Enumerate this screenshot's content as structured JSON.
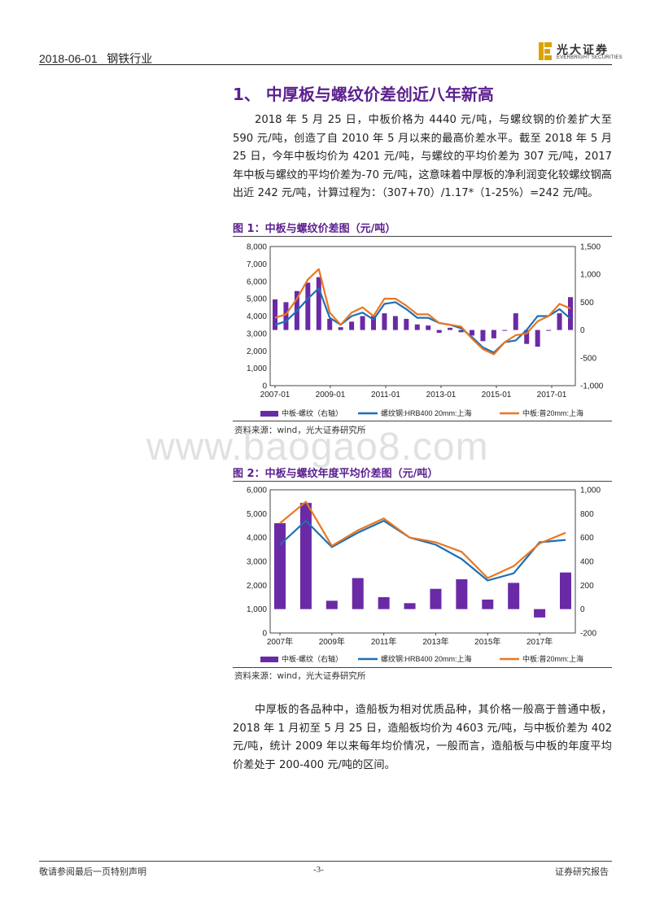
{
  "header": {
    "date": "2018-06-01",
    "industry": "钢铁行业",
    "logo_cn": "光大证券",
    "logo_en": "EVERBRIGHT SECURITIES"
  },
  "section": {
    "title": "1、 中厚板与螺纹价差创近八年新高",
    "paragraph1": "2018 年 5 月 25 日，中板价格为 4440 元/吨，与螺纹钢的价差扩大至 590 元/吨，创造了自 2010 年 5 月以来的最高价差水平。截至 2018 年 5 月 25 日，今年中板均价为 4201 元/吨，与螺纹的平均价差为 307 元/吨，2017 年中板与螺纹的平均价差为-70 元/吨，这意味着中厚板的净利润变化较螺纹钢高出近 242 元/吨，计算过程为：（307+70）/1.17*（1-25%）=242 元/吨。",
    "paragraph2": "中厚板的各品种中，造船板为相对优质品种，其价格一般高于普通中板，2018 年 1 月初至 5 月 25 日，造船板均价为 4603 元/吨，与中板价差为 402 元/吨，统计 2009 年以来每年均价情况，一般而言，造船板与中板的年度平均价差处于 200-400 元/吨的区间。"
  },
  "figure1": {
    "title": "图 1：中板与螺纹价差图（元/吨）",
    "source": "资料来源：wind，光大证券研究所"
  },
  "figure2": {
    "title": "图 2：中板与螺纹年度平均价差图（元/吨）",
    "source": "资料来源：wind，光大证券研究所"
  },
  "watermark": "www.baogao8.com",
  "footer": {
    "left": "敬请参阅最后一页特别声明",
    "center": "-3-",
    "right": "证券研究报告"
  },
  "colors": {
    "accent": "#5b1f8e",
    "spread": "#6a2aa5",
    "rebar": "#1f6fb4",
    "plate": "#e87722"
  },
  "chart_data": [
    {
      "type": "line",
      "title": "中板与螺纹价差图（元/吨）",
      "x": [
        "2007-01",
        "2007-07",
        "2008-01",
        "2008-04",
        "2008-07",
        "2008-10",
        "2009-01",
        "2009-07",
        "2010-01",
        "2010-07",
        "2011-01",
        "2011-07",
        "2012-01",
        "2012-07",
        "2013-01",
        "2013-07",
        "2014-01",
        "2014-07",
        "2015-01",
        "2015-07",
        "2015-12",
        "2016-04",
        "2016-07",
        "2017-01",
        "2017-04",
        "2017-07",
        "2018-01",
        "2018-05"
      ],
      "x_tick_labels": [
        "2007-01",
        "2009-01",
        "2011-01",
        "2013-01",
        "2015-01",
        "2017-01"
      ],
      "ylim_left": [
        0,
        8000
      ],
      "y_ticks_left": [
        "0",
        "1,000",
        "2,000",
        "3,000",
        "4,000",
        "5,000",
        "6,000",
        "7,000",
        "8,000"
      ],
      "ylim_right": [
        -1000,
        1500
      ],
      "y_ticks_right": [
        "-1,000",
        "-500",
        "0",
        "500",
        "1,000",
        "1,500"
      ],
      "legend_position": "bottom",
      "series": [
        {
          "name": "中板-螺纹（右轴）",
          "axis": "right",
          "kind": "bar",
          "values": [
            550,
            500,
            700,
            850,
            950,
            200,
            50,
            150,
            250,
            250,
            300,
            250,
            200,
            100,
            80,
            -50,
            40,
            -40,
            -100,
            -200,
            -150,
            0,
            300,
            -250,
            -300,
            0,
            300,
            590
          ]
        },
        {
          "name": "螺纹钢:HRB400 20mm:上海",
          "axis": "left",
          "kind": "line",
          "values": [
            3500,
            3700,
            4300,
            5000,
            5600,
            3900,
            3500,
            4000,
            4200,
            3800,
            4700,
            4800,
            4400,
            3900,
            3900,
            3600,
            3500,
            3300,
            2800,
            2200,
            1900,
            2500,
            2600,
            3200,
            4000,
            4000,
            4400,
            3850
          ]
        },
        {
          "name": "中板:普20mm:上海",
          "axis": "left",
          "kind": "line",
          "values": [
            3900,
            4100,
            5000,
            6100,
            6700,
            4200,
            3500,
            4200,
            4500,
            4000,
            5000,
            5000,
            4600,
            4100,
            4100,
            3600,
            3500,
            3400,
            2700,
            2100,
            1800,
            2500,
            2900,
            3000,
            3700,
            4000,
            4700,
            4440
          ]
        }
      ]
    },
    {
      "type": "bar",
      "title": "中板与螺纹年度平均价差图（元/吨）",
      "categories": [
        "2007年",
        "2008年",
        "2009年",
        "2010年",
        "2011年",
        "2012年",
        "2013年",
        "2014年",
        "2015年",
        "2016年",
        "2017年",
        "2018年"
      ],
      "x_tick_labels": [
        "2007年",
        "2009年",
        "2011年",
        "2013年",
        "2015年",
        "2017年"
      ],
      "ylim_left": [
        0,
        6000
      ],
      "y_ticks_left": [
        "0",
        "1,000",
        "2,000",
        "3,000",
        "4,000",
        "5,000",
        "6,000"
      ],
      "ylim_right": [
        -200,
        1000
      ],
      "y_ticks_right": [
        "-200",
        "0",
        "200",
        "400",
        "600",
        "800",
        "1,000"
      ],
      "legend_position": "bottom",
      "series": [
        {
          "name": "中板-螺纹（右轴）",
          "axis": "right",
          "kind": "bar",
          "values": [
            720,
            890,
            70,
            260,
            100,
            50,
            170,
            250,
            80,
            220,
            -70,
            307
          ]
        },
        {
          "name": "螺纹钢:HRB400 20mm:上海",
          "axis": "left",
          "kind": "line",
          "values": [
            3700,
            4700,
            3600,
            4200,
            4700,
            4000,
            3700,
            3100,
            2200,
            2500,
            3800,
            3900
          ]
        },
        {
          "name": "中板:普20mm:上海",
          "axis": "left",
          "kind": "line",
          "values": [
            4600,
            5500,
            3650,
            4300,
            4800,
            4000,
            3800,
            3400,
            2300,
            2800,
            3750,
            4200
          ]
        }
      ]
    }
  ]
}
